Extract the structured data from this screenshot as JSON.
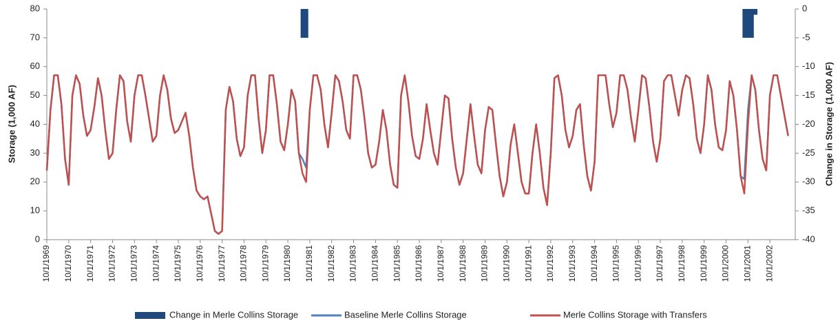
{
  "chart_data": {
    "type": "combo",
    "y_label": "Storage (1,000 AF)",
    "y2_label": "Change in Storage (1,000 AF)",
    "ylim": [
      0,
      80
    ],
    "yticks": [
      0,
      10,
      20,
      30,
      40,
      50,
      60,
      70,
      80
    ],
    "y2lim": [
      -40,
      0
    ],
    "y2ticks": [
      -40,
      -35,
      -30,
      -25,
      -20,
      -15,
      -10,
      -5,
      0
    ],
    "categories": [
      "10/1/1969",
      null,
      null,
      null,
      null,
      null,
      "10/1/1970",
      null,
      null,
      null,
      null,
      null,
      "10/1/1971",
      null,
      null,
      null,
      null,
      null,
      "10/1/1972",
      null,
      null,
      null,
      null,
      null,
      "10/1/1973",
      null,
      null,
      null,
      null,
      null,
      "10/1/1974",
      null,
      null,
      null,
      null,
      null,
      "10/1/1975",
      null,
      null,
      null,
      null,
      null,
      "10/1/1976",
      null,
      null,
      null,
      null,
      null,
      "10/1/1977",
      null,
      null,
      null,
      null,
      null,
      "10/1/1978",
      null,
      null,
      null,
      null,
      null,
      "10/1/1979",
      null,
      null,
      null,
      null,
      null,
      "10/1/1980",
      null,
      null,
      null,
      null,
      null,
      "10/1/1981",
      null,
      null,
      null,
      null,
      null,
      "10/1/1982",
      null,
      null,
      null,
      null,
      null,
      "10/1/1983",
      null,
      null,
      null,
      null,
      null,
      "10/1/1984",
      null,
      null,
      null,
      null,
      null,
      "10/1/1985",
      null,
      null,
      null,
      null,
      null,
      "10/1/1986",
      null,
      null,
      null,
      null,
      null,
      "10/1/1987",
      null,
      null,
      null,
      null,
      null,
      "10/1/1988",
      null,
      null,
      null,
      null,
      null,
      "10/1/1989",
      null,
      null,
      null,
      null,
      null,
      "10/1/1990",
      null,
      null,
      null,
      null,
      null,
      "10/1/1991",
      null,
      null,
      null,
      null,
      null,
      "10/1/1992",
      null,
      null,
      null,
      null,
      null,
      "10/1/1993",
      null,
      null,
      null,
      null,
      null,
      "10/1/1994",
      null,
      null,
      null,
      null,
      null,
      "10/1/1995",
      null,
      null,
      null,
      null,
      null,
      "10/1/1996",
      null,
      null,
      null,
      null,
      null,
      "10/1/1997",
      null,
      null,
      null,
      null,
      null,
      "10/1/1998",
      null,
      null,
      null,
      null,
      null,
      "10/1/1999",
      null,
      null,
      null,
      null,
      null,
      "10/1/2000",
      null,
      null,
      null,
      null,
      null,
      "10/1/2001",
      null,
      null,
      null,
      null,
      null,
      "10/1/2002",
      null,
      null,
      null,
      null,
      null
    ],
    "series": [
      {
        "name": "Change in Merle Collins Storage",
        "type": "bar",
        "axis": "y2",
        "color": "#1f497d",
        "values": [
          null,
          null,
          null,
          null,
          null,
          null,
          null,
          null,
          null,
          null,
          null,
          null,
          null,
          null,
          null,
          null,
          null,
          null,
          null,
          null,
          null,
          null,
          null,
          null,
          null,
          null,
          null,
          null,
          null,
          null,
          null,
          null,
          null,
          null,
          null,
          null,
          null,
          null,
          null,
          null,
          null,
          null,
          null,
          null,
          null,
          null,
          null,
          null,
          null,
          null,
          null,
          null,
          null,
          null,
          null,
          null,
          null,
          null,
          null,
          null,
          null,
          null,
          null,
          null,
          null,
          null,
          null,
          null,
          null,
          null,
          -5,
          -5,
          null,
          null,
          null,
          null,
          null,
          null,
          null,
          null,
          null,
          null,
          null,
          null,
          null,
          null,
          null,
          null,
          null,
          null,
          null,
          null,
          null,
          null,
          null,
          null,
          null,
          null,
          null,
          null,
          null,
          null,
          null,
          null,
          null,
          null,
          null,
          null,
          null,
          null,
          null,
          null,
          null,
          null,
          null,
          null,
          null,
          null,
          null,
          null,
          null,
          null,
          null,
          null,
          null,
          null,
          null,
          null,
          null,
          null,
          null,
          null,
          null,
          null,
          null,
          null,
          null,
          null,
          null,
          null,
          null,
          null,
          null,
          null,
          null,
          null,
          null,
          null,
          null,
          null,
          null,
          null,
          null,
          null,
          null,
          null,
          null,
          null,
          null,
          null,
          null,
          null,
          null,
          null,
          null,
          null,
          null,
          null,
          null,
          null,
          null,
          null,
          null,
          null,
          null,
          null,
          null,
          null,
          null,
          null,
          null,
          null,
          null,
          null,
          null,
          null,
          null,
          null,
          null,
          null,
          null,
          -5,
          -5,
          -5,
          -1,
          null,
          null,
          null,
          null,
          null,
          null,
          null,
          null,
          null
        ]
      },
      {
        "name": "Baseline Merle Collins Storage",
        "type": "line",
        "color": "#4f81bd",
        "values": [
          24,
          45,
          57,
          57,
          47,
          28,
          19,
          50,
          57,
          54,
          43,
          36,
          38,
          46,
          56,
          50,
          38,
          28,
          30,
          45,
          57,
          55,
          41,
          34,
          50,
          57,
          57,
          50,
          42,
          34,
          36,
          50,
          57,
          52,
          42,
          37,
          38,
          41,
          44,
          36,
          25,
          17,
          15,
          14,
          15,
          9,
          3,
          2,
          3,
          45,
          53,
          48,
          35,
          29,
          32,
          50,
          57,
          57,
          42,
          30,
          38,
          57,
          57,
          47,
          34,
          31,
          40,
          52,
          48,
          30,
          28,
          25,
          45,
          57,
          57,
          52,
          40,
          32,
          44,
          57,
          55,
          48,
          38,
          35,
          57,
          57,
          52,
          42,
          30,
          25,
          26,
          34,
          45,
          38,
          26,
          19,
          18,
          50,
          57,
          48,
          36,
          29,
          28,
          35,
          47,
          38,
          30,
          26,
          38,
          50,
          49,
          35,
          25,
          19,
          23,
          35,
          47,
          36,
          26,
          23,
          38,
          46,
          45,
          33,
          22,
          15,
          20,
          33,
          40,
          30,
          20,
          16,
          16,
          30,
          40,
          30,
          18,
          12,
          30,
          56,
          57,
          50,
          38,
          32,
          36,
          45,
          47,
          33,
          22,
          17,
          27,
          57,
          57,
          57,
          47,
          39,
          44,
          57,
          57,
          52,
          42,
          34,
          45,
          57,
          56,
          46,
          34,
          27,
          35,
          55,
          57,
          57,
          50,
          43,
          52,
          57,
          56,
          47,
          35,
          30,
          40,
          57,
          52,
          40,
          32,
          31,
          38,
          55,
          50,
          38,
          22,
          21,
          45,
          57,
          52,
          38,
          28,
          24,
          50,
          57,
          57,
          50,
          43,
          36
        ]
      },
      {
        "name": "Merle Collins Storage with Transfers",
        "type": "line",
        "color": "#c0504d",
        "values": [
          24,
          45,
          57,
          57,
          47,
          28,
          19,
          50,
          57,
          54,
          43,
          36,
          38,
          46,
          56,
          50,
          38,
          28,
          30,
          45,
          57,
          55,
          41,
          34,
          50,
          57,
          57,
          50,
          42,
          34,
          36,
          50,
          57,
          52,
          42,
          37,
          38,
          41,
          44,
          36,
          25,
          17,
          15,
          14,
          15,
          9,
          3,
          2,
          3,
          45,
          53,
          48,
          35,
          29,
          32,
          50,
          57,
          57,
          42,
          30,
          38,
          57,
          57,
          47,
          34,
          31,
          40,
          52,
          48,
          30,
          23,
          20,
          45,
          57,
          57,
          52,
          40,
          32,
          44,
          57,
          55,
          48,
          38,
          35,
          57,
          57,
          52,
          42,
          30,
          25,
          26,
          34,
          45,
          38,
          26,
          19,
          18,
          50,
          57,
          48,
          36,
          29,
          28,
          35,
          47,
          38,
          30,
          26,
          38,
          50,
          49,
          35,
          25,
          19,
          23,
          35,
          47,
          36,
          26,
          23,
          38,
          46,
          45,
          33,
          22,
          15,
          20,
          33,
          40,
          30,
          20,
          16,
          16,
          30,
          40,
          30,
          18,
          12,
          30,
          56,
          57,
          50,
          38,
          32,
          36,
          45,
          47,
          33,
          22,
          17,
          27,
          57,
          57,
          57,
          47,
          39,
          44,
          57,
          57,
          52,
          42,
          34,
          45,
          57,
          56,
          46,
          34,
          27,
          35,
          55,
          57,
          57,
          50,
          43,
          52,
          57,
          56,
          47,
          35,
          30,
          40,
          57,
          52,
          40,
          32,
          31,
          38,
          55,
          50,
          38,
          22,
          16,
          40,
          57,
          52,
          38,
          28,
          24,
          50,
          57,
          57,
          50,
          43,
          36
        ]
      }
    ]
  }
}
